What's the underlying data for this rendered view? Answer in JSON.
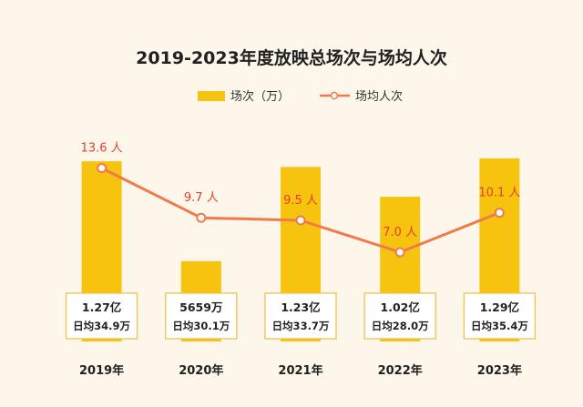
{
  "chart_data": {
    "type": "bar+line",
    "title": "2019-2023年度放映总场次与场均人次",
    "categories": [
      "2019年",
      "2020年",
      "2021年",
      "2022年",
      "2023年"
    ],
    "series": [
      {
        "name": "场次（万）",
        "type": "bar",
        "values": [
          12700,
          5659,
          12300,
          10200,
          12900
        ],
        "value_labels": [
          "1.27亿",
          "5659万",
          "1.23亿",
          "1.02亿",
          "1.29亿"
        ],
        "daily_labels": [
          "日均34.9万",
          "日均30.1万",
          "日均33.7万",
          "日均28.0万",
          "日均35.4万"
        ]
      },
      {
        "name": "场均人次",
        "type": "line",
        "values": [
          13.6,
          9.7,
          9.5,
          7.0,
          10.1
        ],
        "value_labels": [
          "13.6 人",
          "9.7 人",
          "9.5 人",
          "7.0 人",
          "10.1 人"
        ]
      }
    ],
    "bar_ylim": [
      0,
      13800
    ],
    "line_ylim": [
      0,
      20
    ],
    "grid": false,
    "legend_position": "top-center"
  },
  "colors": {
    "bar": "#f6c40e",
    "line": "#f07a4a",
    "point_label": "#e0412a",
    "box_border": "#efc24a",
    "background": "#fdf6ea"
  }
}
